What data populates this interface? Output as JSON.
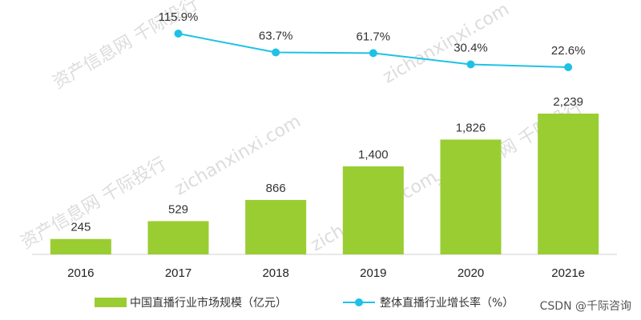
{
  "chart_data": {
    "type": "bar",
    "categories": [
      "2016",
      "2017",
      "2018",
      "2019",
      "2020",
      "2021e"
    ],
    "series": [
      {
        "name": "中国直播行业市场规模（亿元）",
        "type": "bar",
        "color": "#9ACD32",
        "values": [
          245,
          529,
          866,
          1400,
          1826,
          2239
        ],
        "labels": [
          "245",
          "529",
          "866",
          "1,400",
          "1,826",
          "2,239"
        ]
      },
      {
        "name": "整体直播行业增长率（%）",
        "type": "line",
        "color": "#1FC1E6",
        "values": [
          null,
          115.9,
          63.7,
          61.7,
          30.4,
          22.6
        ],
        "labels": [
          "",
          "115.9%",
          "63.7%",
          "61.7%",
          "30.4%",
          "22.6%"
        ]
      }
    ],
    "legend_position": "bottom",
    "grid": false
  },
  "watermark": {
    "lines": [
      "资产信息网 千际投行",
      "zichanxinxi.com"
    ]
  },
  "credit": "CSDN @千际咨询"
}
